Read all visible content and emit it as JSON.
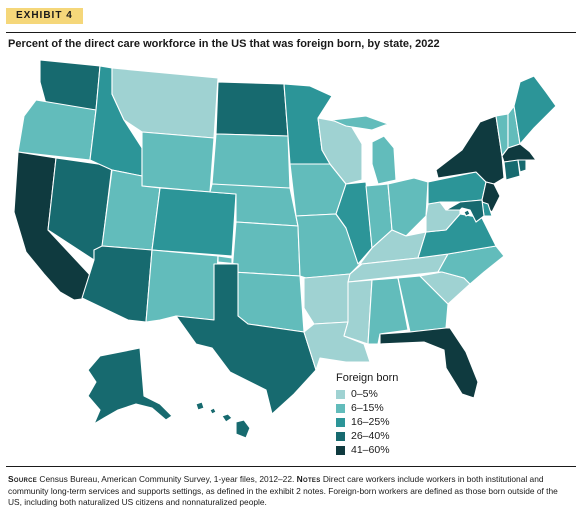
{
  "exhibit_label": "EXHIBIT 4",
  "title": "Percent of the direct care workforce in the US that was foreign born, by state, 2022",
  "legend": {
    "title": "Foreign born",
    "bins": [
      {
        "label": "0–5%",
        "color": "#9fd2d2"
      },
      {
        "label": "6–15%",
        "color": "#62bcbb"
      },
      {
        "label": "16–25%",
        "color": "#2c9598"
      },
      {
        "label": "26–40%",
        "color": "#176a6f"
      },
      {
        "label": "41–60%",
        "color": "#0f3a3f"
      }
    ]
  },
  "states": {
    "WA": 3,
    "OR": 1,
    "CA": 4,
    "NV": 3,
    "ID": 2,
    "MT": 0,
    "WY": 1,
    "UT": 1,
    "AZ": 3,
    "CO": 2,
    "NM": 1,
    "ND": 3,
    "SD": 1,
    "NE": 1,
    "KS": 1,
    "OK": 1,
    "TX": 3,
    "MN": 2,
    "IA": 1,
    "MO": 1,
    "AR": 0,
    "LA": 0,
    "WI": 0,
    "IL": 2,
    "MI": 1,
    "IN": 1,
    "OH": 1,
    "KY": 0,
    "TN": 0,
    "MS": 0,
    "AL": 1,
    "GA": 1,
    "FL": 4,
    "SC": 0,
    "NC": 1,
    "VA": 2,
    "WV": 0,
    "PA": 2,
    "NY": 4,
    "VT": 1,
    "NH": 1,
    "ME": 2,
    "MA": 4,
    "RI": 3,
    "CT": 3,
    "NJ": 4,
    "DE": 2,
    "MD": 3,
    "DC": 3,
    "AK": 3,
    "HI": 3
  },
  "footnote": {
    "source_label": "Source",
    "source_text": "Census Bureau, American Community Survey, 1-year files, 2012–22.",
    "notes_label": "Notes",
    "notes_text": "Direct care workers include workers in both institutional and community long-term services and supports settings, as defined in the exhibit 2 notes. Foreign-born workers are defined as those born outside of the US, including both naturalized US citizens and nonnaturalized people."
  }
}
